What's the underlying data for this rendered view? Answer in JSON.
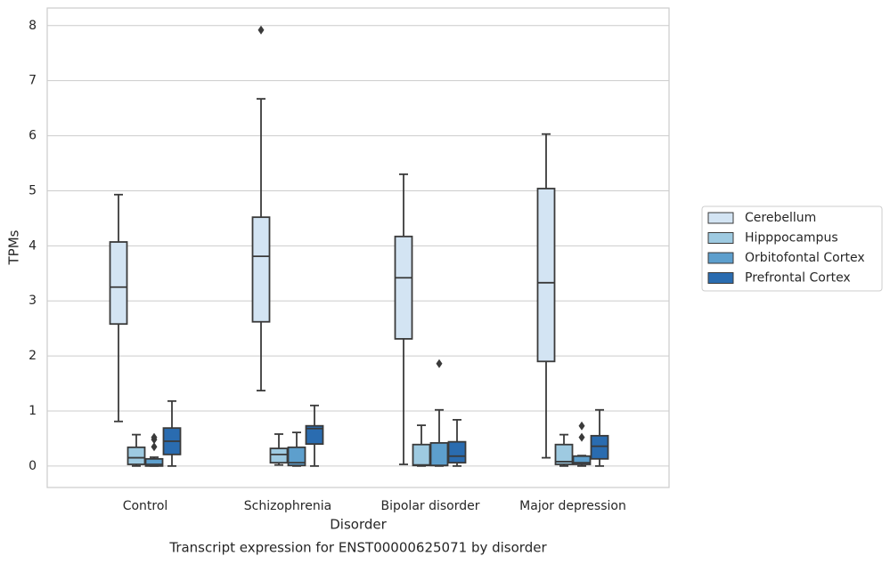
{
  "chart_data": {
    "type": "box",
    "title": "Transcript expression for ENST00000625071 by disorder",
    "xlabel": "Disorder",
    "ylabel": "TPMs",
    "categories": [
      "Control",
      "Schizophrenia",
      "Bipolar disorder",
      "Major depression"
    ],
    "ylim": [
      -0.39,
      8.32
    ],
    "yticks": [
      0,
      1,
      2,
      3,
      4,
      5,
      6,
      7,
      8
    ],
    "grid": true,
    "legend": "right",
    "series": [
      {
        "name": "Cerebellum",
        "color": "#d3e4f3",
        "whislo": [
          0.81,
          1.37,
          0.03,
          0.15
        ],
        "q1": [
          2.58,
          2.62,
          2.31,
          1.9
        ],
        "med": [
          3.25,
          3.81,
          3.42,
          3.33
        ],
        "q3": [
          4.07,
          4.52,
          4.17,
          5.04
        ],
        "whishi": [
          4.93,
          6.67,
          5.3,
          6.03
        ],
        "fliers": [
          [],
          [
            7.92
          ],
          [],
          []
        ]
      },
      {
        "name": "Hipppocampus",
        "color": "#9ecae1",
        "whislo": [
          0.0,
          0.02,
          0.0,
          0.0
        ],
        "q1": [
          0.03,
          0.06,
          0.01,
          0.03
        ],
        "med": [
          0.15,
          0.21,
          0.02,
          0.08
        ],
        "q3": [
          0.34,
          0.32,
          0.39,
          0.39
        ],
        "whishi": [
          0.57,
          0.58,
          0.74,
          0.57
        ],
        "fliers": [
          [],
          [],
          [],
          []
        ]
      },
      {
        "name": "Orbitofontal Cortex",
        "color": "#5d9fcd",
        "whislo": [
          0.0,
          0.0,
          0.0,
          0.0
        ],
        "q1": [
          0.0,
          0.01,
          0.01,
          0.03
        ],
        "med": [
          0.03,
          0.06,
          0.01,
          0.06
        ],
        "q3": [
          0.13,
          0.34,
          0.42,
          0.18
        ],
        "whishi": [
          0.16,
          0.61,
          1.02,
          0.19
        ],
        "fliers": [
          [
            0.35,
            0.48,
            0.52
          ],
          [],
          [
            1.86
          ],
          [
            0.52,
            0.73
          ]
        ]
      },
      {
        "name": "Prefrontal Cortex",
        "color": "#2a6cb0",
        "whislo": [
          0.0,
          0.0,
          0.0,
          0.0
        ],
        "q1": [
          0.21,
          0.4,
          0.06,
          0.13
        ],
        "med": [
          0.45,
          0.68,
          0.18,
          0.36
        ],
        "q3": [
          0.69,
          0.73,
          0.44,
          0.55
        ],
        "whishi": [
          1.18,
          1.1,
          0.84,
          1.02
        ],
        "fliers": [
          [],
          [],
          [],
          []
        ]
      }
    ]
  }
}
